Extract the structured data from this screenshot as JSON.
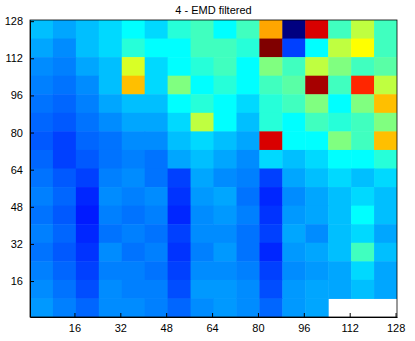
{
  "chart_data": {
    "type": "heatmap",
    "title": "4 - EMD filtered",
    "x": [
      4.5,
      12.5,
      20.5,
      28.5,
      36.5,
      44.5,
      52.5,
      60.5,
      68.5,
      76.5,
      84.5,
      92.5,
      100.5,
      108.5,
      116.5,
      124.5
    ],
    "y": [
      124.5,
      116.5,
      108.5,
      100.5,
      92.5,
      84.5,
      76.5,
      68.5,
      60.5,
      52.5,
      44.5,
      36.5,
      28.5,
      20.5,
      12.5,
      4.5
    ],
    "z": [
      [
        0.4,
        0.38,
        0.4,
        0.42,
        0.45,
        0.42,
        0.48,
        0.5,
        0.45,
        0.5,
        0.72,
        0.15,
        0.88,
        0.5,
        0.6,
        0.5
      ],
      [
        0.38,
        0.36,
        0.4,
        0.42,
        0.48,
        0.45,
        0.45,
        0.5,
        0.5,
        0.48,
        0.95,
        0.3,
        0.45,
        0.6,
        0.65,
        0.5
      ],
      [
        0.36,
        0.35,
        0.38,
        0.4,
        0.62,
        0.42,
        0.45,
        0.48,
        0.5,
        0.45,
        0.55,
        0.5,
        0.6,
        0.55,
        0.5,
        0.52
      ],
      [
        0.35,
        0.34,
        0.36,
        0.4,
        0.7,
        0.42,
        0.55,
        0.45,
        0.48,
        0.45,
        0.5,
        0.52,
        0.92,
        0.5,
        0.82,
        0.6
      ],
      [
        0.34,
        0.33,
        0.35,
        0.38,
        0.4,
        0.4,
        0.45,
        0.48,
        0.45,
        0.42,
        0.48,
        0.5,
        0.55,
        0.45,
        0.55,
        0.7
      ],
      [
        0.33,
        0.32,
        0.34,
        0.36,
        0.38,
        0.38,
        0.42,
        0.6,
        0.45,
        0.4,
        0.48,
        0.45,
        0.5,
        0.48,
        0.5,
        0.55
      ],
      [
        0.32,
        0.3,
        0.33,
        0.34,
        0.36,
        0.36,
        0.4,
        0.42,
        0.4,
        0.38,
        0.88,
        0.45,
        0.45,
        0.55,
        0.5,
        0.7
      ],
      [
        0.33,
        0.3,
        0.32,
        0.34,
        0.35,
        0.34,
        0.38,
        0.4,
        0.38,
        0.36,
        0.42,
        0.4,
        0.42,
        0.45,
        0.45,
        0.48
      ],
      [
        0.34,
        0.32,
        0.3,
        0.35,
        0.36,
        0.34,
        0.3,
        0.38,
        0.36,
        0.35,
        0.3,
        0.38,
        0.4,
        0.42,
        0.4,
        0.42
      ],
      [
        0.35,
        0.33,
        0.28,
        0.36,
        0.35,
        0.36,
        0.29,
        0.37,
        0.38,
        0.34,
        0.28,
        0.36,
        0.38,
        0.4,
        0.42,
        0.4
      ],
      [
        0.34,
        0.32,
        0.27,
        0.35,
        0.34,
        0.35,
        0.28,
        0.36,
        0.37,
        0.35,
        0.29,
        0.37,
        0.38,
        0.4,
        0.45,
        0.4
      ],
      [
        0.35,
        0.33,
        0.28,
        0.34,
        0.35,
        0.34,
        0.3,
        0.36,
        0.36,
        0.34,
        0.3,
        0.38,
        0.36,
        0.4,
        0.42,
        0.38
      ],
      [
        0.34,
        0.32,
        0.29,
        0.36,
        0.34,
        0.35,
        0.29,
        0.35,
        0.37,
        0.34,
        0.28,
        0.37,
        0.38,
        0.4,
        0.5,
        0.4
      ],
      [
        0.35,
        0.33,
        0.3,
        0.35,
        0.35,
        0.34,
        0.3,
        0.36,
        0.36,
        0.35,
        0.3,
        0.36,
        0.37,
        0.38,
        0.42,
        0.38
      ],
      [
        0.36,
        0.34,
        0.31,
        0.36,
        0.35,
        0.35,
        0.31,
        0.37,
        0.37,
        0.36,
        0.31,
        0.37,
        0.38,
        0.38,
        0.4,
        0.38
      ],
      [
        0.37,
        0.35,
        0.33,
        0.36,
        0.36,
        0.35,
        0.33,
        0.36,
        0.37,
        0.36,
        0.33,
        0.37,
        0.38,
        null,
        null,
        null
      ]
    ],
    "xlim": [
      0.5,
      128.5
    ],
    "ylim": [
      0.5,
      128.5
    ],
    "xticks": [
      16,
      32,
      48,
      64,
      80,
      96,
      112,
      128
    ],
    "yticks": [
      16,
      32,
      48,
      64,
      80,
      96,
      112,
      128
    ],
    "grid": false
  }
}
